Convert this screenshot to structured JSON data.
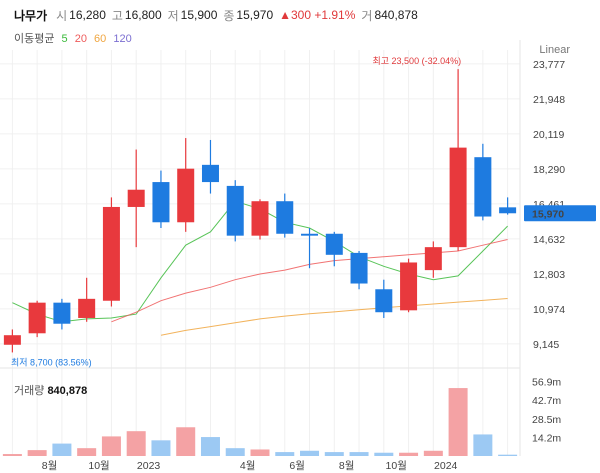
{
  "stock": {
    "name": "나무가",
    "open_label": "시",
    "open": "16,280",
    "high_label": "고",
    "high": "16,800",
    "low_label": "저",
    "low": "15,900",
    "close_label": "종",
    "close": "15,970",
    "change": "▲300 +1.91%",
    "volume_label": "거",
    "volume": "840,878"
  },
  "ma_legend": {
    "title": "이동평균",
    "items": [
      {
        "label": "5",
        "color": "#3bba3b"
      },
      {
        "label": "20",
        "color": "#ee5b5b"
      },
      {
        "label": "60",
        "color": "#f0a640"
      },
      {
        "label": "120",
        "color": "#7c6fd1"
      }
    ]
  },
  "scale_label": "Linear",
  "volume_panel": {
    "label": "거래량",
    "value": "840,878"
  },
  "colors": {
    "up": "#e8393d",
    "down": "#1e7be0",
    "vol_up": "#f4a2a4",
    "vol_down": "#9cc9f3"
  },
  "chart_data": {
    "type": "candlestick",
    "price_axis": {
      "min": 8200,
      "max": 24500,
      "ticks": [
        "23,777",
        "21,948",
        "20,119",
        "18,290",
        "16,461",
        "14,632",
        "12,803",
        "10,974",
        "9,145"
      ]
    },
    "current_price_label": "15,970",
    "annotations": {
      "high": "최고 23,500 (-32.04%)",
      "low": "최저 8,700 (83.56%)"
    },
    "x_ticks": [
      "8월",
      "10월",
      "2023",
      "4월",
      "6월",
      "8월",
      "10월",
      "2024"
    ],
    "candles": [
      {
        "o": 9100,
        "h": 9900,
        "l": 8700,
        "c": 9600,
        "v": 1.5
      },
      {
        "o": 9700,
        "h": 11400,
        "l": 9500,
        "c": 11300,
        "v": 4.5
      },
      {
        "o": 11300,
        "h": 11500,
        "l": 9900,
        "c": 10200,
        "v": 9.5
      },
      {
        "o": 10500,
        "h": 12600,
        "l": 10300,
        "c": 11500,
        "v": 6.0
      },
      {
        "o": 11400,
        "h": 16800,
        "l": 11100,
        "c": 16300,
        "v": 15.0
      },
      {
        "o": 16300,
        "h": 19300,
        "l": 14200,
        "c": 17200,
        "v": 19.0
      },
      {
        "o": 17600,
        "h": 18200,
        "l": 15200,
        "c": 15500,
        "v": 12.0
      },
      {
        "o": 15500,
        "h": 19900,
        "l": 15000,
        "c": 18300,
        "v": 22.0
      },
      {
        "o": 18500,
        "h": 19800,
        "l": 17000,
        "c": 17600,
        "v": 14.5
      },
      {
        "o": 17400,
        "h": 17700,
        "l": 14500,
        "c": 14800,
        "v": 6.0
      },
      {
        "o": 14800,
        "h": 16700,
        "l": 14600,
        "c": 16600,
        "v": 5.0
      },
      {
        "o": 16600,
        "h": 17000,
        "l": 14700,
        "c": 14900,
        "v": 3.0
      },
      {
        "o": 14900,
        "h": 15200,
        "l": 13100,
        "c": 14800,
        "v": 4.0
      },
      {
        "o": 14900,
        "h": 15000,
        "l": 13200,
        "c": 13800,
        "v": 3.0
      },
      {
        "o": 13900,
        "h": 14000,
        "l": 12000,
        "c": 12300,
        "v": 3.0
      },
      {
        "o": 12000,
        "h": 12500,
        "l": 10500,
        "c": 10800,
        "v": 2.5
      },
      {
        "o": 10900,
        "h": 13600,
        "l": 10800,
        "c": 13400,
        "v": 2.5
      },
      {
        "o": 13000,
        "h": 14500,
        "l": 12600,
        "c": 14200,
        "v": 4.0
      },
      {
        "o": 14200,
        "h": 23500,
        "l": 14000,
        "c": 19400,
        "v": 52.0
      },
      {
        "o": 18900,
        "h": 19600,
        "l": 15600,
        "c": 15800,
        "v": 16.5
      },
      {
        "o": 16280,
        "h": 16800,
        "l": 15900,
        "c": 15970,
        "v": 1.0
      }
    ],
    "moving_averages": [
      {
        "name": "5",
        "color": "#3bba3b",
        "values": [
          11300,
          10700,
          10300,
          10450,
          10500,
          10700,
          12600,
          14300,
          15000,
          16600,
          16200,
          15500,
          15200,
          14500,
          13700,
          13200,
          12800,
          12500,
          12700,
          14000,
          15300
        ]
      },
      {
        "name": "20",
        "color": "#ee5b5b",
        "values": [
          null,
          null,
          null,
          null,
          10300,
          10800,
          11400,
          11800,
          12100,
          12500,
          12800,
          13000,
          13300,
          13500,
          13600,
          13700,
          13800,
          13900,
          14000,
          14300,
          14600
        ]
      },
      {
        "name": "60",
        "color": "#f0a640",
        "values": [
          null,
          null,
          null,
          null,
          null,
          null,
          9600,
          9850,
          10050,
          10250,
          10450,
          10600,
          10720,
          10820,
          10930,
          11030,
          11130,
          11230,
          11330,
          11420,
          11520
        ]
      }
    ],
    "volume_axis": {
      "max": 62,
      "ticks": [
        "56.9m",
        "42.7m",
        "28.5m",
        "14.2m"
      ]
    }
  }
}
